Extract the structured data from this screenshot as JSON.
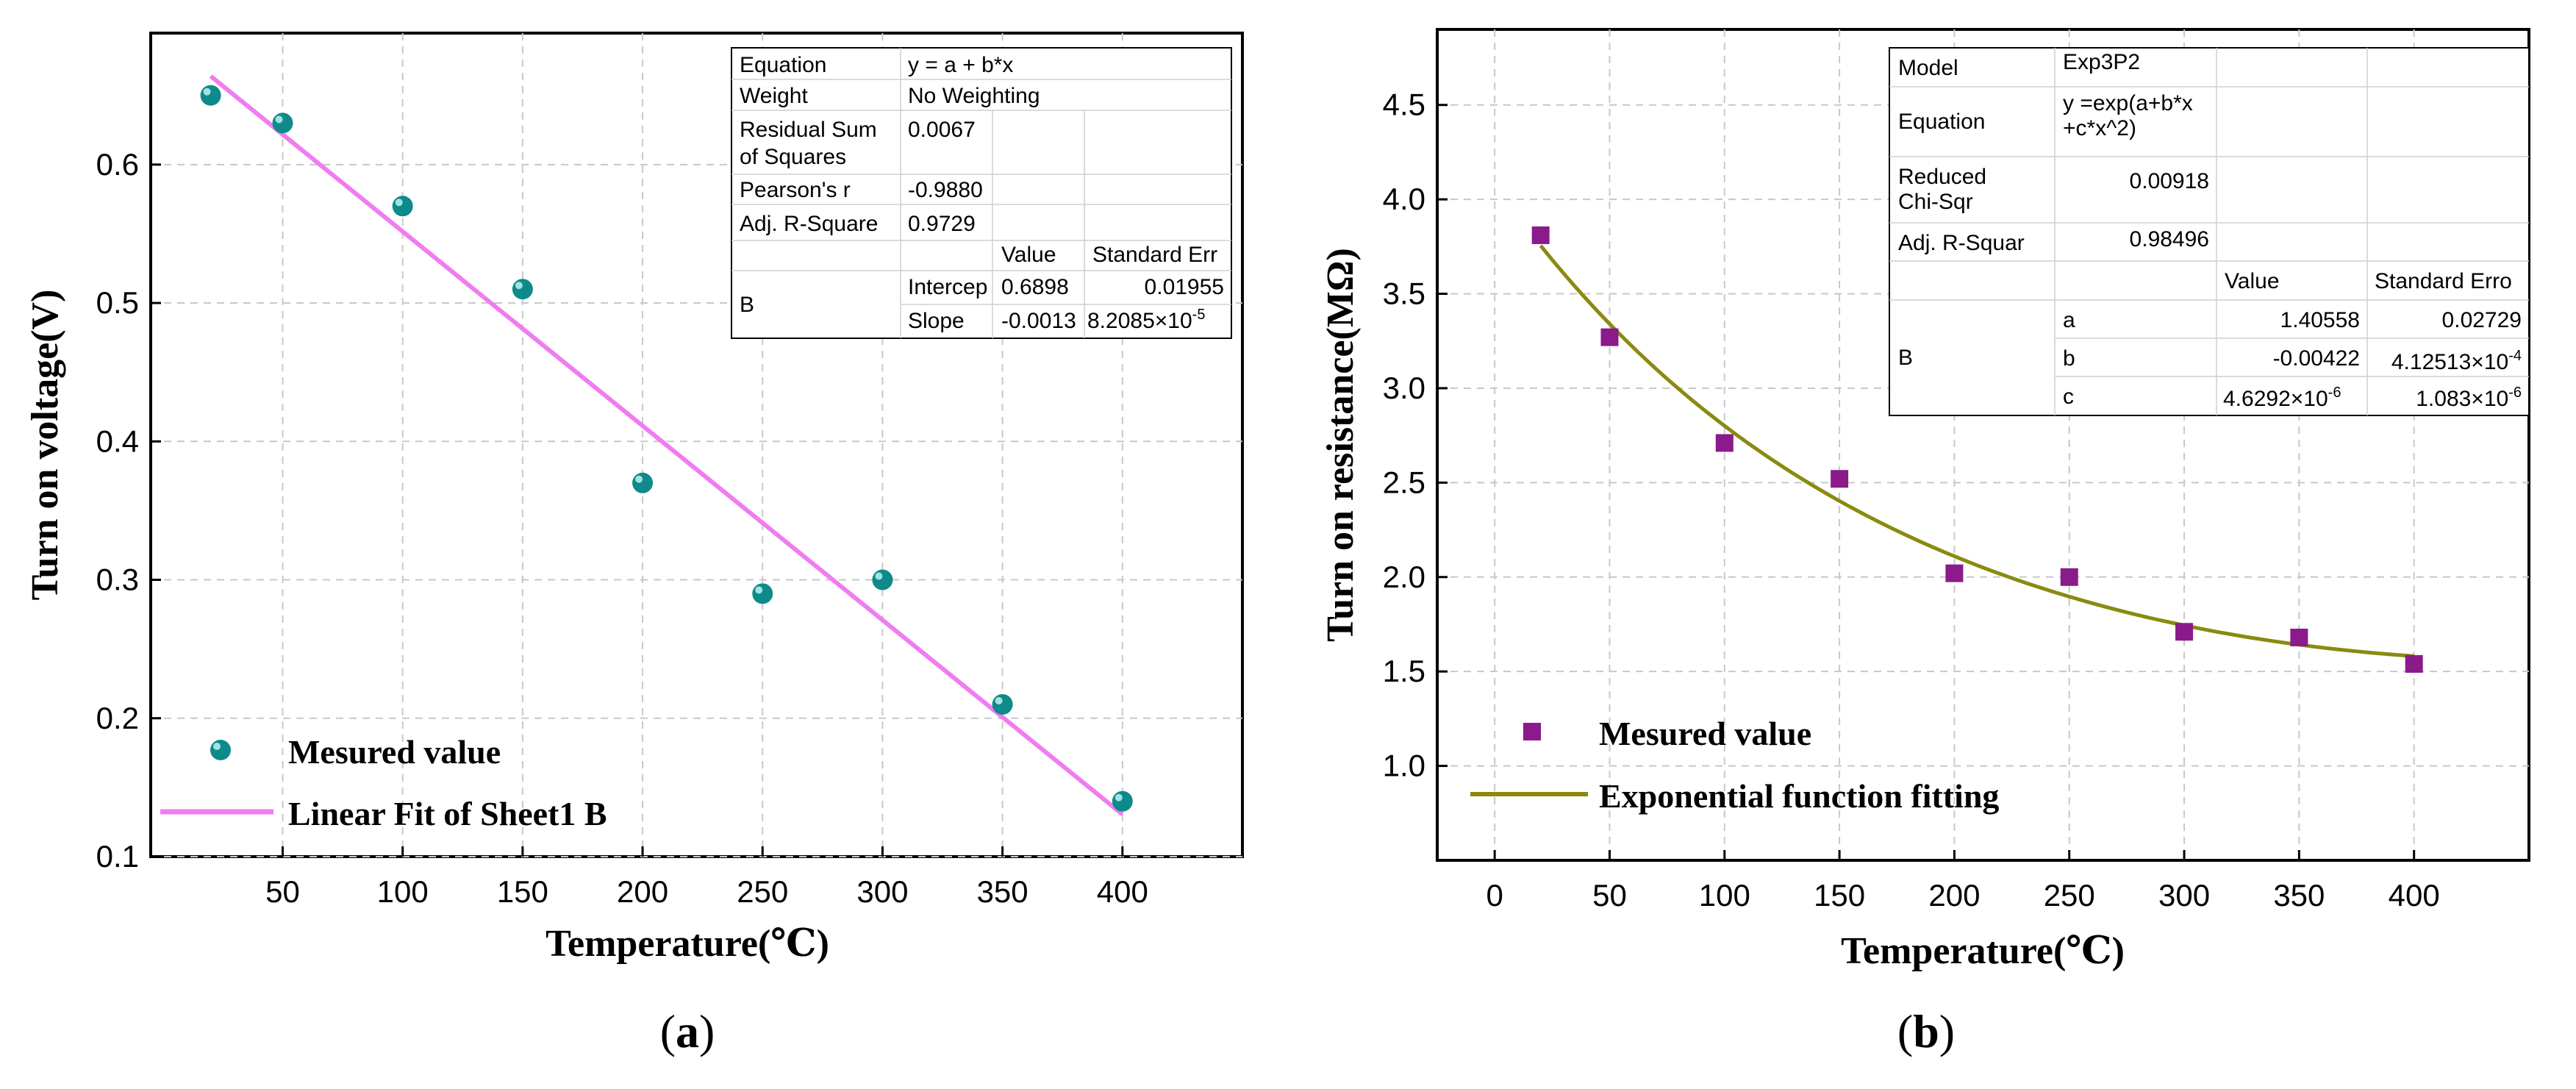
{
  "chart_data": [
    {
      "id": "a",
      "panel_label": "a",
      "type": "scatter",
      "xlabel": "Temperature(℃)",
      "ylabel": "Turn on voltage(V)",
      "xlim": [
        -5,
        450
      ],
      "ylim": [
        0.1,
        0.695
      ],
      "xticks": [
        50,
        100,
        150,
        200,
        250,
        300,
        350,
        400
      ],
      "yticks": [
        0.1,
        0.2,
        0.3,
        0.4,
        0.5,
        0.6
      ],
      "ytick_labels": [
        "0.1",
        "0.2",
        "0.3",
        "0.4",
        "0.5",
        "0.6"
      ],
      "grid": true,
      "legend_position": "bottom-left",
      "series": [
        {
          "name": "Mesured value",
          "kind": "points",
          "marker": "sphere",
          "color": "#0f8a8a",
          "x": [
            20,
            50,
            100,
            150,
            200,
            250,
            300,
            350,
            400
          ],
          "y": [
            0.65,
            0.63,
            0.57,
            0.51,
            0.37,
            0.29,
            0.3,
            0.21,
            0.14
          ]
        },
        {
          "name": "Linear Fit of Sheet1 B",
          "kind": "line",
          "color": "#f07cf0",
          "x": [
            20,
            400
          ],
          "y": [
            0.6639,
            0.1306
          ]
        }
      ],
      "fit_table": {
        "rows": [
          [
            "Equation",
            "y = a + b*x",
            "",
            ""
          ],
          [
            "Weight",
            "No Weighting",
            "",
            ""
          ],
          [
            "Residual Sum of Squares",
            "0.0067",
            "",
            ""
          ],
          [
            "Pearson's r",
            "-0.9880",
            "",
            ""
          ],
          [
            "Adj. R-Square",
            "0.9729",
            "",
            ""
          ],
          [
            "",
            "",
            "Value",
            "Standard Err"
          ],
          [
            "B",
            "Intercep",
            "0.6898",
            "0.01955"
          ],
          [
            "",
            "Slope",
            "-0.0013",
            "8.2085×10"
          ]
        ],
        "exponent_slope_err": "-5"
      }
    },
    {
      "id": "b",
      "panel_label": "b",
      "type": "scatter",
      "xlabel": "Temperature(℃)",
      "ylabel": "Turn on resistance(MΩ)",
      "xlim": [
        -25,
        450
      ],
      "ylim": [
        0.5,
        4.9
      ],
      "xticks": [
        0,
        50,
        100,
        150,
        200,
        250,
        300,
        350,
        400
      ],
      "yticks": [
        1.0,
        1.5,
        2.0,
        2.5,
        3.0,
        3.5,
        4.0,
        4.5
      ],
      "ytick_labels": [
        "1.0",
        "1.5",
        "2.0",
        "2.5",
        "3.0",
        "3.5",
        "4.0",
        "4.5"
      ],
      "grid": true,
      "legend_position": "bottom-left",
      "series": [
        {
          "name": "Mesured value",
          "kind": "points",
          "marker": "square",
          "color": "#8b1a8b",
          "x": [
            20,
            50,
            100,
            150,
            200,
            250,
            300,
            350,
            400
          ],
          "y": [
            3.81,
            3.27,
            2.71,
            2.52,
            2.02,
            2.0,
            1.71,
            1.68,
            1.54
          ]
        },
        {
          "name": "Exponential function fitting",
          "kind": "curve",
          "color": "#8a8a10",
          "model": "exp(a+b*x+c*x^2)",
          "params": {
            "a": 1.40558,
            "b": -0.00422,
            "c": 4.6292e-06
          },
          "x_range": [
            20,
            400
          ]
        }
      ],
      "fit_table": {
        "rows": [
          [
            "Model",
            "Exp3P2",
            "",
            ""
          ],
          [
            "Equation",
            "y =exp(a+b*x +c*x^2)",
            "",
            ""
          ],
          [
            "Reduced Chi-Sqr",
            "0.00918",
            "",
            ""
          ],
          [
            "Adj. R-Squar",
            "0.98496",
            "",
            ""
          ],
          [
            "",
            "",
            "Value",
            "Standard Erro"
          ],
          [
            "B",
            "a",
            "1.40558",
            "0.02729"
          ],
          [
            "",
            "b",
            "-0.00422",
            "4.12513×10"
          ],
          [
            "",
            "c",
            "4.6292×10",
            "1.083×10"
          ]
        ],
        "exponent_b_err": "-4",
        "exponent_c_val": "-6",
        "exponent_c_err": "-6"
      }
    }
  ]
}
